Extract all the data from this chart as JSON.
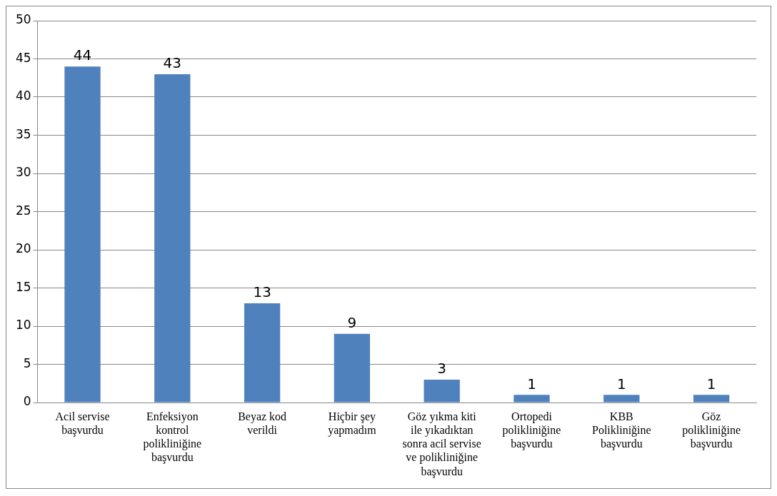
{
  "chart_data": {
    "type": "bar",
    "categories": [
      "Acil servise başvurdu",
      "Enfeksiyon kontrol polikliniğine başvurdu",
      "Beyaz kod verildi",
      "Hiçbir şey yapmadım",
      "Göz yıkma kiti ile yıkadıktan sonra acil servise ve polikliniğine başvurdu",
      "Ortopedi polikliniğine başvurdu",
      "KBB Polikliniğine başvurdu",
      "Göz polikliniğine başvurdu"
    ],
    "values": [
      44,
      43,
      13,
      9,
      3,
      1,
      1,
      1
    ],
    "color": "#4f81bd",
    "ylim": [
      0,
      50
    ],
    "yticks": [
      0,
      5,
      10,
      15,
      20,
      25,
      30,
      35,
      40,
      45,
      50
    ],
    "grid": "y",
    "data_labels": true,
    "legend": false
  }
}
